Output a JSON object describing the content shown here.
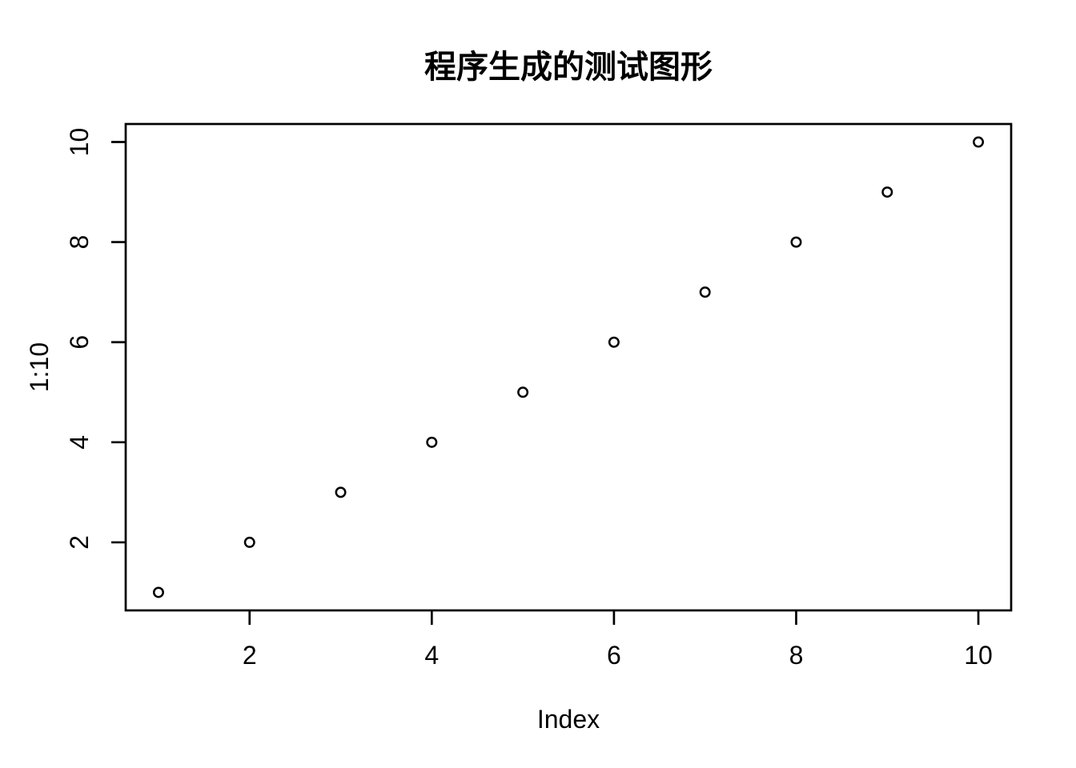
{
  "chart_data": {
    "type": "scatter",
    "title": "程序生成的测试图形",
    "xlabel": "Index",
    "ylabel": "1:10",
    "x": [
      1,
      2,
      3,
      4,
      5,
      6,
      7,
      8,
      9,
      10
    ],
    "y": [
      1,
      2,
      3,
      4,
      5,
      6,
      7,
      8,
      9,
      10
    ],
    "x_ticks": [
      2,
      4,
      6,
      8,
      10
    ],
    "y_ticks": [
      2,
      4,
      6,
      8,
      10
    ],
    "xlim": [
      0.64,
      10.36
    ],
    "ylim": [
      0.64,
      10.36
    ],
    "grid": false,
    "legend": "none",
    "marker": "open-circle",
    "colors": {
      "foreground": "#000000",
      "background": "#ffffff"
    }
  }
}
